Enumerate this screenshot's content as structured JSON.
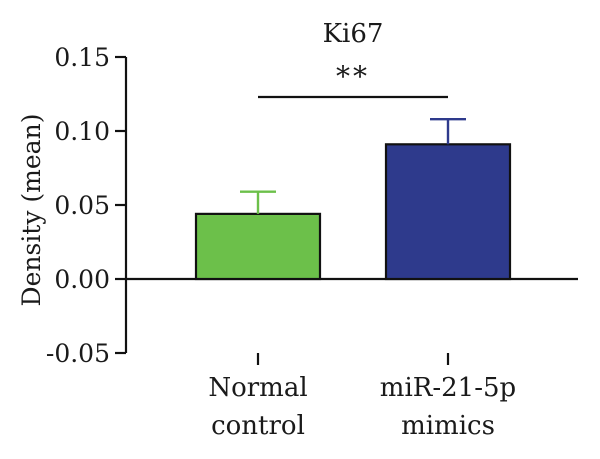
{
  "chart_data": {
    "type": "bar",
    "title": "Ki67",
    "ylabel": "Density (mean)",
    "xlabel": "",
    "ylim": [
      -0.05,
      0.15
    ],
    "yticks": [
      "-0.05",
      "0.00",
      "0.05",
      "0.10",
      "0.15"
    ],
    "ytick_values": [
      -0.05,
      0.0,
      0.05,
      0.1,
      0.15
    ],
    "categories": [
      {
        "lines": [
          "Normal",
          "control"
        ]
      },
      {
        "lines": [
          "miR-21-5p",
          "mimics"
        ]
      }
    ],
    "values": [
      0.044,
      0.091
    ],
    "errors": [
      0.015,
      0.017
    ],
    "colors": [
      "#6cc04a",
      "#2e3a8c"
    ],
    "error_colors": [
      "#6cc04a",
      "#2e3a8c"
    ],
    "significance": {
      "label": "**",
      "between": [
        0,
        1
      ]
    },
    "grid": false,
    "legend": "none"
  }
}
